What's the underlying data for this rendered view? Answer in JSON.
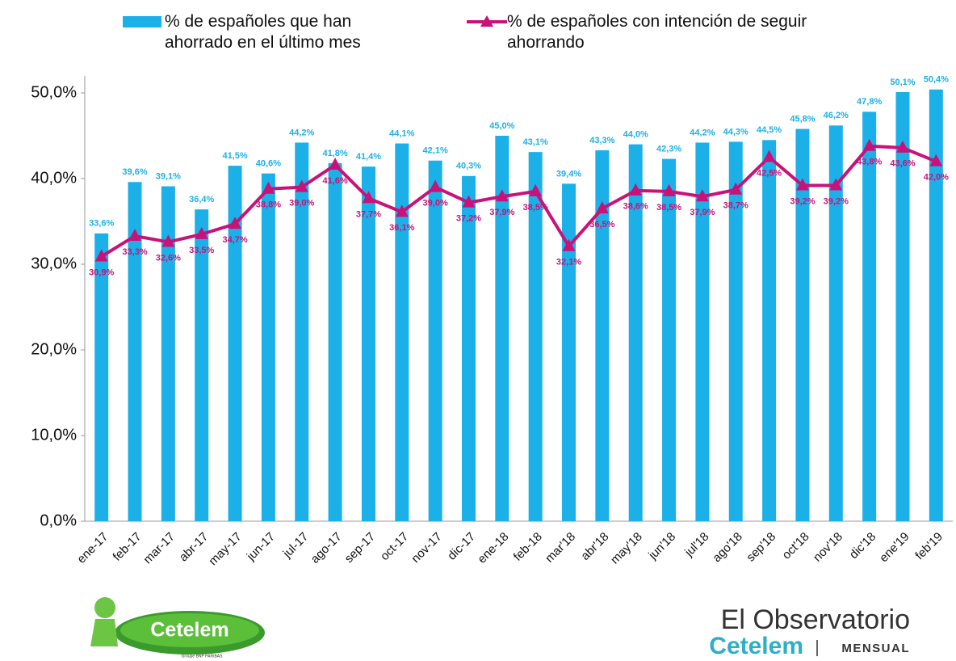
{
  "chart_data": {
    "type": "bar-line",
    "categories": [
      "ene-17",
      "feb-17",
      "mar-17",
      "abr-17",
      "may-17",
      "jun-17",
      "jul-17",
      "ago-17",
      "sep-17",
      "oct-17",
      "nov-17",
      "dic-17",
      "ene-18",
      "feb-18",
      "mar'18",
      "abr'18",
      "may'18",
      "jun'18",
      "jul'18",
      "ago'18",
      "sep'18",
      "oct'18",
      "nov'18",
      "dic'18",
      "ene'19",
      "feb'19"
    ],
    "series": [
      {
        "name": "% de españoles que han ahorrado en el último mes",
        "type": "bar",
        "color": "#1cb0e8",
        "values": [
          33.6,
          39.6,
          39.1,
          36.4,
          41.5,
          40.6,
          44.2,
          41.8,
          41.4,
          44.1,
          42.1,
          40.3,
          45.0,
          43.1,
          39.4,
          43.3,
          44.0,
          42.3,
          44.2,
          44.3,
          44.5,
          45.8,
          46.2,
          47.8,
          50.1,
          50.4
        ],
        "value_labels": [
          "33,6%",
          "39,6%",
          "39,1%",
          "36,4%",
          "41,5%",
          "40,6%",
          "44,2%",
          "41,8%",
          "41,4%",
          "44,1%",
          "42,1%",
          "40,3%",
          "45,0%",
          "43,1%",
          "39,4%",
          "43,3%",
          "44,0%",
          "42,3%",
          "44,2%",
          "44,3%",
          "44,5%",
          "45,8%",
          "46,2%",
          "47,8%",
          "50,1%",
          "50,4%"
        ]
      },
      {
        "name": "% de españoles con intención de seguir ahorrando",
        "type": "line",
        "color": "#c8127a",
        "values": [
          30.9,
          33.3,
          32.6,
          33.5,
          34.7,
          38.8,
          39.0,
          41.6,
          37.7,
          36.1,
          39.0,
          37.2,
          37.9,
          38.5,
          32.1,
          36.5,
          38.6,
          38.5,
          37.9,
          38.7,
          42.5,
          39.2,
          39.2,
          43.8,
          43.6,
          42.0
        ],
        "value_labels": [
          "30,9%",
          "33,3%",
          "32,6%",
          "33,5%",
          "34,7%",
          "38,8%",
          "39,0%",
          "41,6%",
          "37,7%",
          "36,1%",
          "39,0%",
          "37,2%",
          "37,9%",
          "38,5%",
          "32,1%",
          "36,5%",
          "38,6%",
          "38,5%",
          "37,9%",
          "38,7%",
          "42,5%",
          "39,2%",
          "39,2%",
          "43,8%",
          "43,6%",
          "42,0%"
        ]
      }
    ],
    "ylim": [
      0,
      52
    ],
    "yticks": [
      {
        "value": 0,
        "label": "0,0%"
      },
      {
        "value": 10,
        "label": "10,0%"
      },
      {
        "value": 20,
        "label": "20,0%"
      },
      {
        "value": 30,
        "label": "30,0%"
      },
      {
        "value": 40,
        "label": "40,0%"
      },
      {
        "value": 50,
        "label": "50,0%"
      }
    ],
    "grid": false
  },
  "branding": {
    "left_logo": "Cetelem",
    "left_tagline": "Groupe BNP PARIBAS",
    "right_title": "El Observatorio",
    "right_brand": "Cetelem",
    "right_edition": "MENSUAL"
  }
}
